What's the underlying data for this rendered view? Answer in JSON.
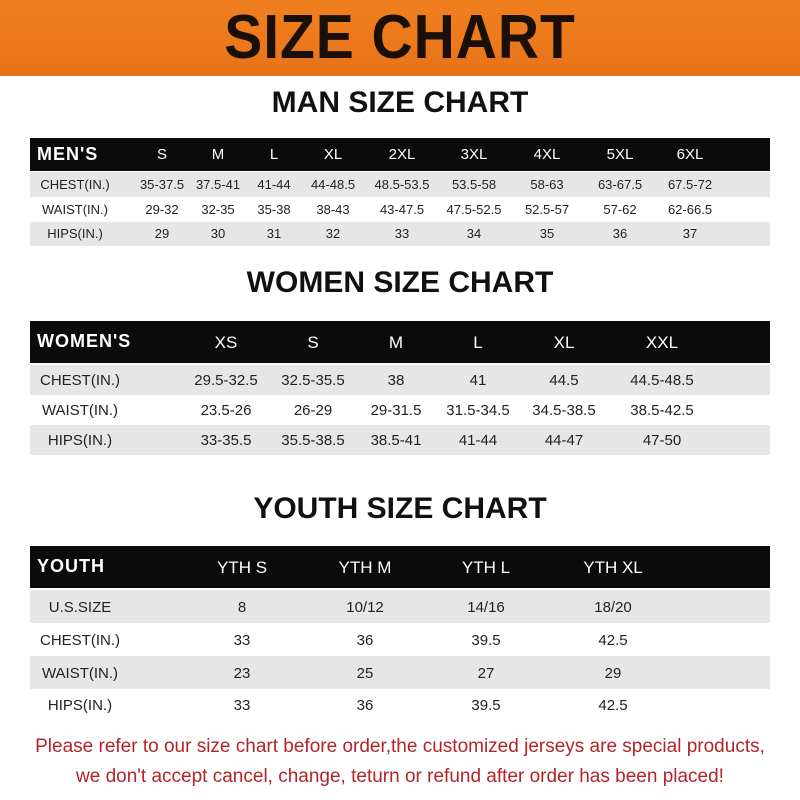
{
  "banner": {
    "title": "SIZE CHART",
    "color": "#ee7a1c"
  },
  "men": {
    "title": "MAN SIZE CHART",
    "label": "MEN'S",
    "sizes": [
      "S",
      "M",
      "L",
      "XL",
      "2XL",
      "3XL",
      "4XL",
      "5XL",
      "6XL"
    ],
    "rows": [
      {
        "label": "CHEST(IN.)",
        "values": [
          "35-37.5",
          "37.5-41",
          "41-44",
          "44-48.5",
          "48.5-53.5",
          "53.5-58",
          "58-63",
          "63-67.5",
          "67.5-72"
        ]
      },
      {
        "label": "WAIST(IN.)",
        "values": [
          "29-32",
          "32-35",
          "35-38",
          "38-43",
          "43-47.5",
          "47.5-52.5",
          "52.5-57",
          "57-62",
          "62-66.5"
        ]
      },
      {
        "label": "HIPS(IN.)",
        "values": [
          "29",
          "30",
          "31",
          "32",
          "33",
          "34",
          "35",
          "36",
          "37"
        ]
      }
    ]
  },
  "women": {
    "title": "WOMEN SIZE CHART",
    "label": "WOMEN'S",
    "sizes": [
      "XS",
      "S",
      "M",
      "L",
      "XL",
      "XXL"
    ],
    "rows": [
      {
        "label": "CHEST(IN.)",
        "values": [
          "29.5-32.5",
          "32.5-35.5",
          "38",
          "41",
          "44.5",
          "44.5-48.5"
        ]
      },
      {
        "label": "WAIST(IN.)",
        "values": [
          "23.5-26",
          "26-29",
          "29-31.5",
          "31.5-34.5",
          "34.5-38.5",
          "38.5-42.5"
        ]
      },
      {
        "label": "HIPS(IN.)",
        "values": [
          "33-35.5",
          "35.5-38.5",
          "38.5-41",
          "41-44",
          "44-47",
          "47-50"
        ]
      }
    ]
  },
  "youth": {
    "title": "YOUTH SIZE CHART",
    "label": "YOUTH",
    "sizes": [
      "YTH S",
      "YTH M",
      "YTH L",
      "YTH XL"
    ],
    "rows": [
      {
        "label": "U.S.SIZE",
        "values": [
          "8",
          "10/12",
          "14/16",
          "18/20"
        ]
      },
      {
        "label": "CHEST(IN.)",
        "values": [
          "33",
          "36",
          "39.5",
          "42.5"
        ]
      },
      {
        "label": "WAIST(IN.)",
        "values": [
          "23",
          "25",
          "27",
          "29"
        ]
      },
      {
        "label": "HIPS(IN.)",
        "values": [
          "33",
          "36",
          "39.5",
          "42.5"
        ]
      }
    ]
  },
  "footer": {
    "line1": "Please refer to our size chart before order,the customized jerseys are special products,",
    "line2": "we don't accept cancel, change, teturn or refund after order has been placed!",
    "color": "#b3242a"
  }
}
